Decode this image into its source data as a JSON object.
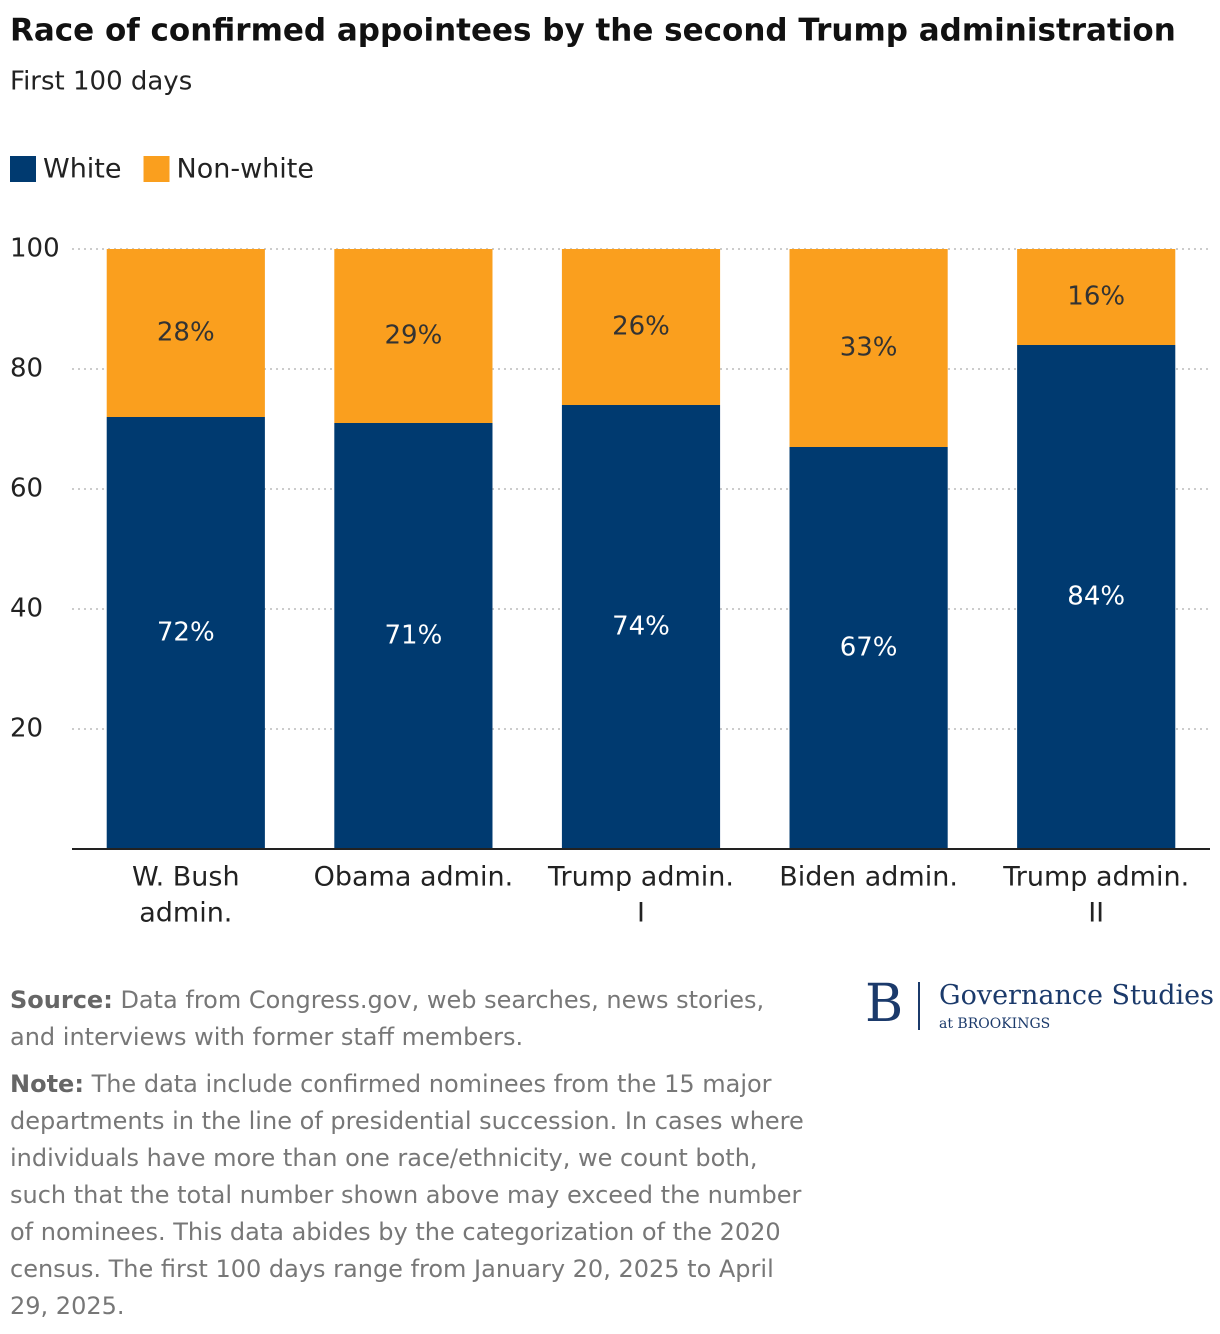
{
  "chart_data": {
    "type": "stacked_bar",
    "title": "Race of confirmed appointees by the second Trump administration",
    "subtitle": "First 100 days",
    "categories": [
      [
        "W. Bush",
        "admin."
      ],
      [
        "Obama admin."
      ],
      [
        "Trump admin.",
        "I"
      ],
      [
        "Biden admin."
      ],
      [
        "Trump admin.",
        "II"
      ]
    ],
    "series": [
      {
        "name": "White",
        "color": "#003a70",
        "label_color": "#ffffff",
        "values": [
          72,
          71,
          74,
          67,
          84
        ],
        "value_labels": [
          "72%",
          "71%",
          "74%",
          "67%",
          "84%"
        ]
      },
      {
        "name": "Non-white",
        "color": "#fa9f1e",
        "label_color": "#333333",
        "values": [
          28,
          29,
          26,
          33,
          16
        ],
        "value_labels": [
          "28%",
          "29%",
          "26%",
          "33%",
          "16%"
        ]
      }
    ],
    "ylim": [
      0,
      100
    ],
    "yticks": [
      20,
      40,
      60,
      80,
      100
    ],
    "grid": true,
    "legend": "top-left"
  },
  "footer": {
    "source_label": "Source:",
    "source": "Data from Congress.gov, web searches, news stories, and interviews with former staff members.",
    "note_label": "Note:",
    "note": "The data include confirmed nominees from the 15 major departments in the line of presidential succession. In cases where individuals have more than one race/ethnicity, we count both, such that the total number shown above may exceed the number of nominees. This data abides by the categorization of the 2020 census. The first 100 days range from January 20, 2025 to April 29, 2025."
  },
  "logo": {
    "letter": "B",
    "name": "Governance Studies",
    "sub": "at BROOKINGS"
  }
}
